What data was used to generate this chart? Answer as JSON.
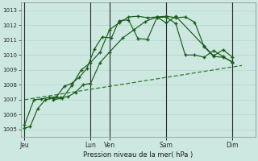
{
  "xlabel": "Pression niveau de la mer( hPa )",
  "bg_color": "#cce8e0",
  "grid_color": "#b0d8d0",
  "line_color": "#1a5c1a",
  "trend_color": "#2d7a2d",
  "ylim": [
    1004.5,
    1013.5
  ],
  "yticks": [
    1005,
    1006,
    1007,
    1008,
    1009,
    1010,
    1011,
    1012,
    1013
  ],
  "x_tick_positions": [
    0,
    3.5,
    4.5,
    7.5,
    11
  ],
  "x_tick_labels": [
    "Jeu",
    "Lun",
    "Ven",
    "Sam",
    "Dim"
  ],
  "x_vlines": [
    0,
    3.5,
    4.5,
    7.5,
    11
  ],
  "xlim": [
    -0.2,
    12.2
  ],
  "series1_x": [
    0.0,
    0.3,
    0.7,
    1.1,
    1.5,
    1.9,
    2.3,
    2.7,
    3.1,
    3.5,
    4.0,
    4.5,
    5.2,
    5.8,
    6.4,
    7.0,
    7.5,
    8.0,
    8.5,
    9.0,
    9.5,
    10.0,
    10.5,
    11.0
  ],
  "series1_y": [
    1005.1,
    1005.2,
    1006.4,
    1007.0,
    1007.1,
    1007.15,
    1007.2,
    1007.5,
    1008.0,
    1008.1,
    1009.5,
    1010.2,
    1011.15,
    1011.7,
    1012.25,
    1012.55,
    1012.6,
    1012.5,
    1012.55,
    1012.2,
    1010.55,
    1009.9,
    1009.85,
    1009.55
  ],
  "series2_x": [
    0.0,
    0.5,
    0.9,
    1.3,
    1.7,
    2.1,
    2.5,
    2.9,
    3.3,
    3.7,
    4.1,
    4.6,
    5.0,
    5.5,
    6.0,
    6.5,
    7.0,
    7.5,
    8.0,
    8.5,
    9.0,
    9.5,
    10.0,
    10.5,
    11.0
  ],
  "series2_y": [
    1005.3,
    1007.0,
    1007.05,
    1007.15,
    1007.2,
    1007.9,
    1008.1,
    1008.5,
    1009.1,
    1010.4,
    1011.2,
    1011.15,
    1012.3,
    1012.35,
    1011.1,
    1011.05,
    1012.5,
    1012.55,
    1012.1,
    1010.0,
    1010.0,
    1009.85,
    1010.3,
    1009.9,
    1009.5
  ],
  "series3_x": [
    1.5,
    2.0,
    2.5,
    3.0,
    3.5,
    4.0,
    4.5,
    5.0,
    5.5,
    6.0,
    6.5,
    7.0,
    7.5,
    8.0,
    9.5,
    10.0,
    10.5,
    11.0
  ],
  "series3_y": [
    1007.0,
    1007.1,
    1007.95,
    1009.0,
    1009.5,
    1010.2,
    1011.7,
    1012.15,
    1012.55,
    1012.6,
    1012.5,
    1012.55,
    1012.15,
    1012.6,
    1010.6,
    1009.95,
    1010.35,
    1009.85
  ],
  "trend_x": [
    0.0,
    11.5
  ],
  "trend_y": [
    1007.0,
    1009.3
  ]
}
